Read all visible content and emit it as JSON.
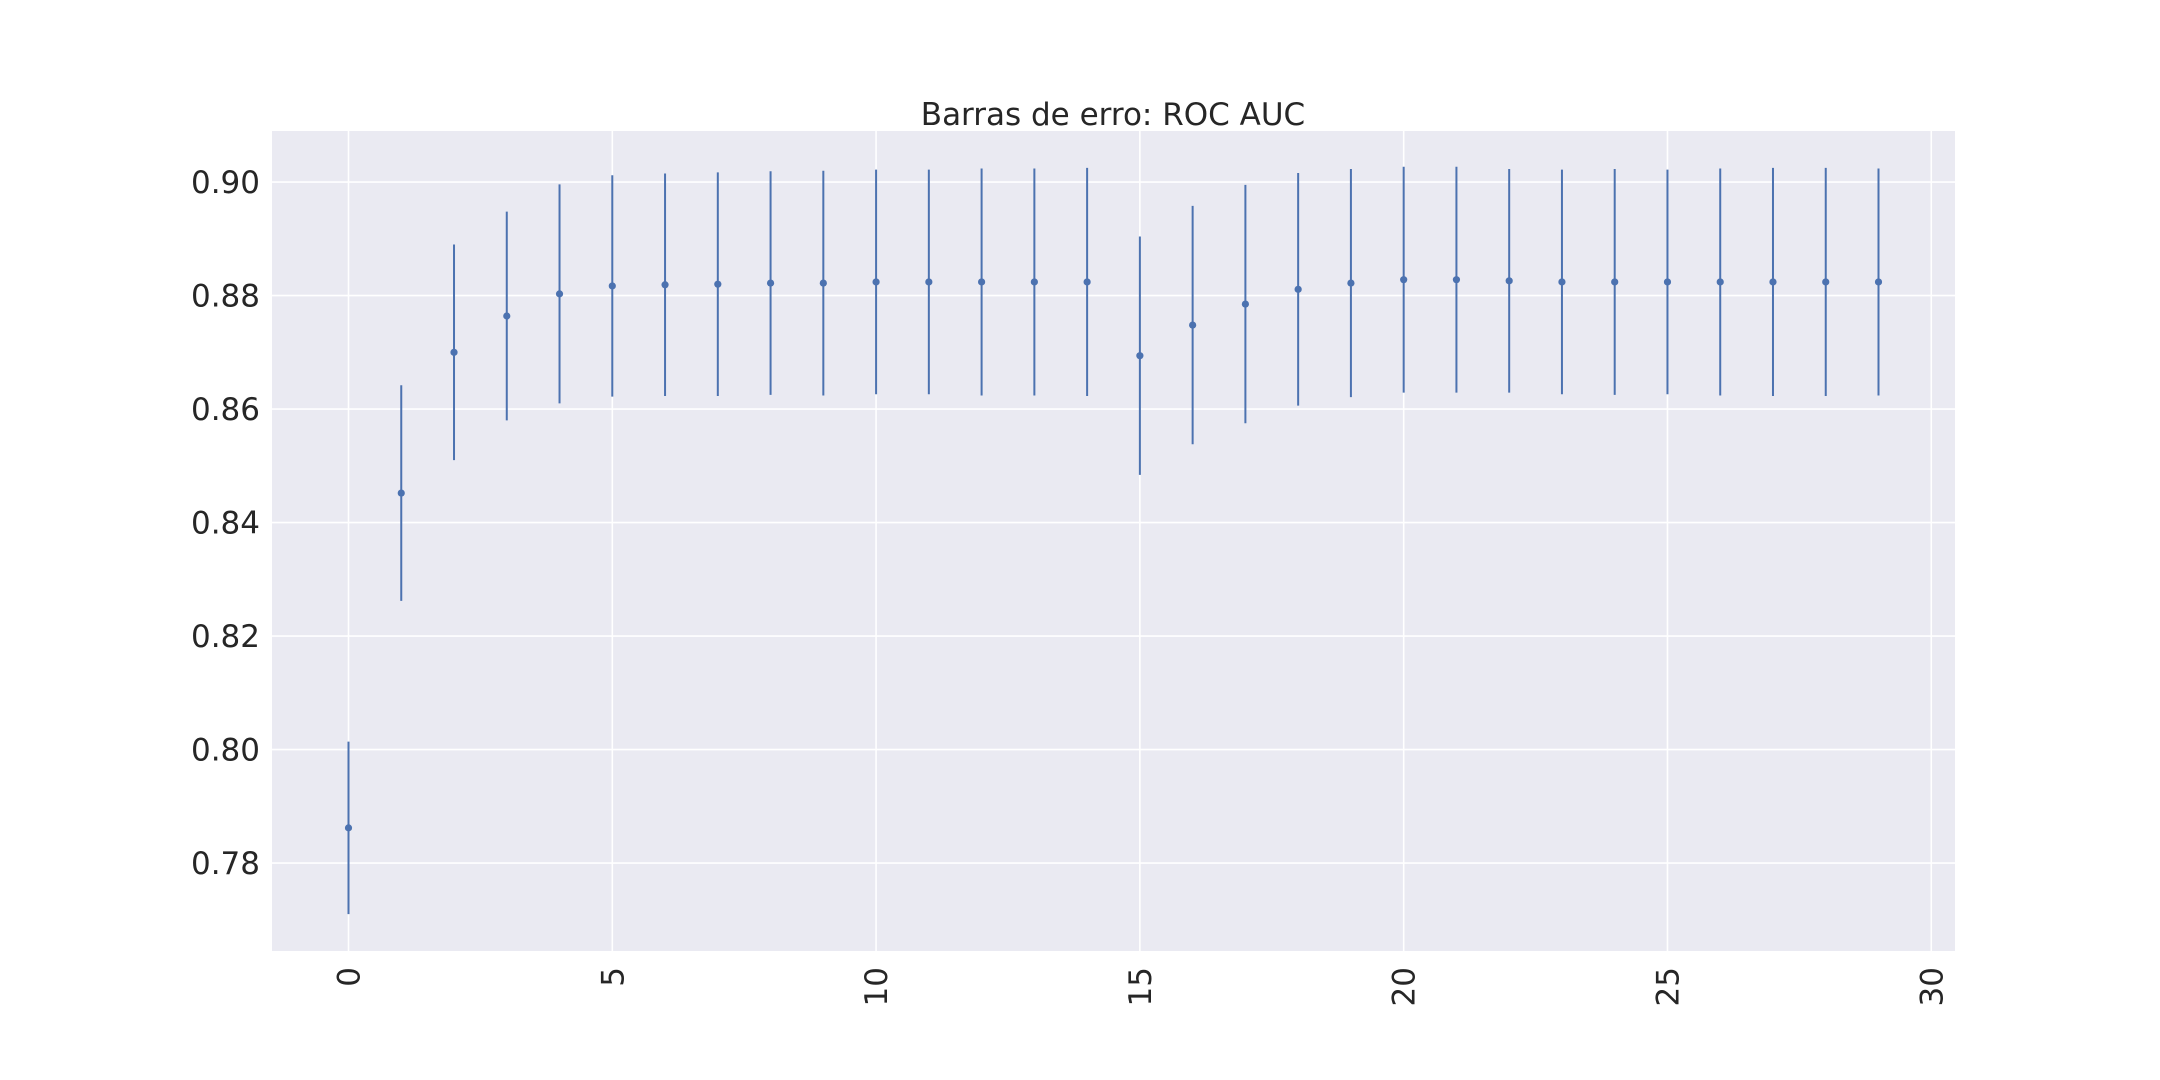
{
  "chart_data": {
    "type": "scatter",
    "title": "Barras de erro: ROC AUC",
    "xlabel": "",
    "ylabel": "",
    "xlim": [
      -1.45,
      30.45
    ],
    "ylim": [
      0.7645,
      0.909
    ],
    "xticks": [
      0,
      5,
      10,
      15,
      20,
      25,
      30
    ],
    "yticks": [
      0.78,
      0.8,
      0.82,
      0.84,
      0.86,
      0.88,
      0.9
    ],
    "xtick_rotation": 90,
    "grid": true,
    "style": "seaborn-darkgrid",
    "colors": {
      "background": "#eaeaf2",
      "marker": "#4c72b0",
      "grid": "#ffffff"
    },
    "series": [
      {
        "x": [
          0,
          1,
          2,
          3,
          4,
          5,
          6,
          7,
          8,
          9,
          10,
          11,
          12,
          13,
          14,
          15,
          16,
          17,
          18,
          19,
          20,
          21,
          22,
          23,
          24,
          25,
          26,
          27,
          28,
          29
        ],
        "y": [
          0.7862,
          0.8452,
          0.87,
          0.8764,
          0.8803,
          0.8817,
          0.8819,
          0.882,
          0.8822,
          0.8822,
          0.8824,
          0.8824,
          0.8824,
          0.8824,
          0.8824,
          0.8694,
          0.8748,
          0.8785,
          0.8811,
          0.8822,
          0.8828,
          0.8828,
          0.8826,
          0.8824,
          0.8824,
          0.8824,
          0.8824,
          0.8824,
          0.8824,
          0.8824
        ],
        "err": [
          0.0152,
          0.019,
          0.019,
          0.0184,
          0.0193,
          0.0195,
          0.0196,
          0.0197,
          0.0197,
          0.0198,
          0.0198,
          0.0198,
          0.02,
          0.02,
          0.0201,
          0.021,
          0.021,
          0.021,
          0.0205,
          0.0201,
          0.0199,
          0.0199,
          0.0197,
          0.0198,
          0.0199,
          0.0198,
          0.02,
          0.0201,
          0.0201,
          0.02
        ]
      }
    ]
  }
}
